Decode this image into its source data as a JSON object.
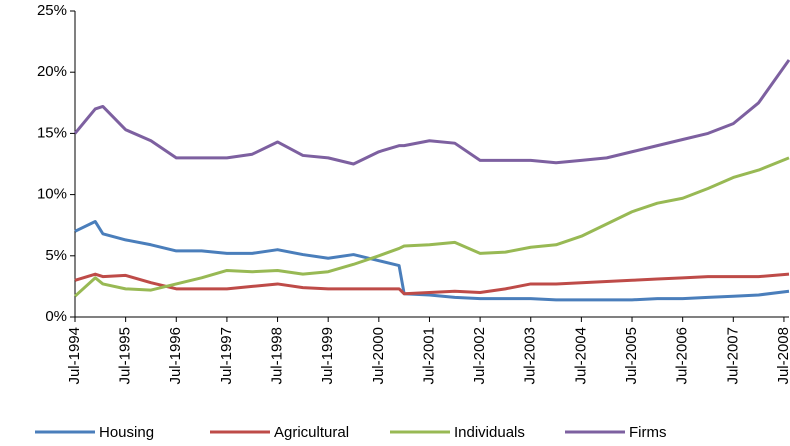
{
  "chart_data": {
    "type": "line",
    "x": [
      1994.5,
      1994.9,
      1995.05,
      1995.5,
      1996.0,
      1996.5,
      1997.0,
      1997.5,
      1998.0,
      1998.5,
      1999.0,
      1999.5,
      2000.0,
      2000.5,
      2000.9,
      2001.0,
      2001.5,
      2002.0,
      2002.5,
      2003.0,
      2003.5,
      2004.0,
      2004.5,
      2005.0,
      2005.5,
      2006.0,
      2006.5,
      2007.0,
      2007.5,
      2008.0,
      2008.6
    ],
    "series": [
      {
        "name": "Housing",
        "color": "#4a7ebb",
        "values": [
          7.0,
          7.8,
          6.8,
          6.3,
          5.9,
          5.4,
          5.4,
          5.2,
          5.2,
          5.5,
          5.1,
          4.8,
          5.1,
          4.6,
          4.2,
          1.9,
          1.8,
          1.6,
          1.5,
          1.5,
          1.5,
          1.4,
          1.4,
          1.4,
          1.4,
          1.5,
          1.5,
          1.6,
          1.7,
          1.8,
          2.1
        ]
      },
      {
        "name": "Agricultural",
        "color": "#be4b48",
        "values": [
          3.0,
          3.5,
          3.3,
          3.4,
          2.8,
          2.3,
          2.3,
          2.3,
          2.5,
          2.7,
          2.4,
          2.3,
          2.3,
          2.3,
          2.3,
          1.9,
          2.0,
          2.1,
          2.0,
          2.3,
          2.7,
          2.7,
          2.8,
          2.9,
          3.0,
          3.1,
          3.2,
          3.3,
          3.3,
          3.3,
          3.5
        ]
      },
      {
        "name": "Individuals",
        "color": "#98b954",
        "values": [
          1.7,
          3.2,
          2.7,
          2.3,
          2.2,
          2.7,
          3.2,
          3.8,
          3.7,
          3.8,
          3.5,
          3.7,
          4.3,
          5.0,
          5.6,
          5.8,
          5.9,
          6.1,
          5.2,
          5.3,
          5.7,
          5.9,
          6.6,
          7.6,
          8.6,
          9.3,
          9.7,
          10.5,
          11.4,
          12.0,
          13.0
        ]
      },
      {
        "name": "Firms",
        "color": "#7d60a0",
        "values": [
          15.0,
          17.0,
          17.2,
          15.3,
          14.4,
          13.0,
          13.0,
          13.0,
          13.3,
          14.3,
          13.2,
          13.0,
          12.5,
          13.5,
          14.0,
          14.0,
          14.4,
          14.2,
          12.8,
          12.8,
          12.8,
          12.6,
          12.8,
          13.0,
          13.5,
          14.0,
          14.5,
          15.0,
          15.8,
          17.5,
          21.0
        ]
      }
    ],
    "xlim": [
      1994.5,
      2008.6
    ],
    "xticks": [
      {
        "value": 1994.5,
        "label": "Jul-1994"
      },
      {
        "value": 1995.5,
        "label": "Jul-1995"
      },
      {
        "value": 1996.5,
        "label": "Jul-1996"
      },
      {
        "value": 1997.5,
        "label": "Jul-1997"
      },
      {
        "value": 1998.5,
        "label": "Jul-1998"
      },
      {
        "value": 1999.5,
        "label": "Jul-1999"
      },
      {
        "value": 2000.5,
        "label": "Jul-2000"
      },
      {
        "value": 2001.5,
        "label": "Jul-2001"
      },
      {
        "value": 2002.5,
        "label": "Jul-2002"
      },
      {
        "value": 2003.5,
        "label": "Jul-2003"
      },
      {
        "value": 2004.5,
        "label": "Jul-2004"
      },
      {
        "value": 2005.5,
        "label": "Jul-2005"
      },
      {
        "value": 2006.5,
        "label": "Jul-2006"
      },
      {
        "value": 2007.5,
        "label": "Jul-2007"
      },
      {
        "value": 2008.5,
        "label": "Jul-2008"
      }
    ],
    "ylim": [
      0,
      25
    ],
    "yticks": [
      {
        "value": 0,
        "label": "0%"
      },
      {
        "value": 5,
        "label": "5%"
      },
      {
        "value": 10,
        "label": "10%"
      },
      {
        "value": 15,
        "label": "15%"
      },
      {
        "value": 20,
        "label": "20%"
      },
      {
        "value": 25,
        "label": "25%"
      }
    ],
    "grid": false,
    "legend": "bottom"
  }
}
